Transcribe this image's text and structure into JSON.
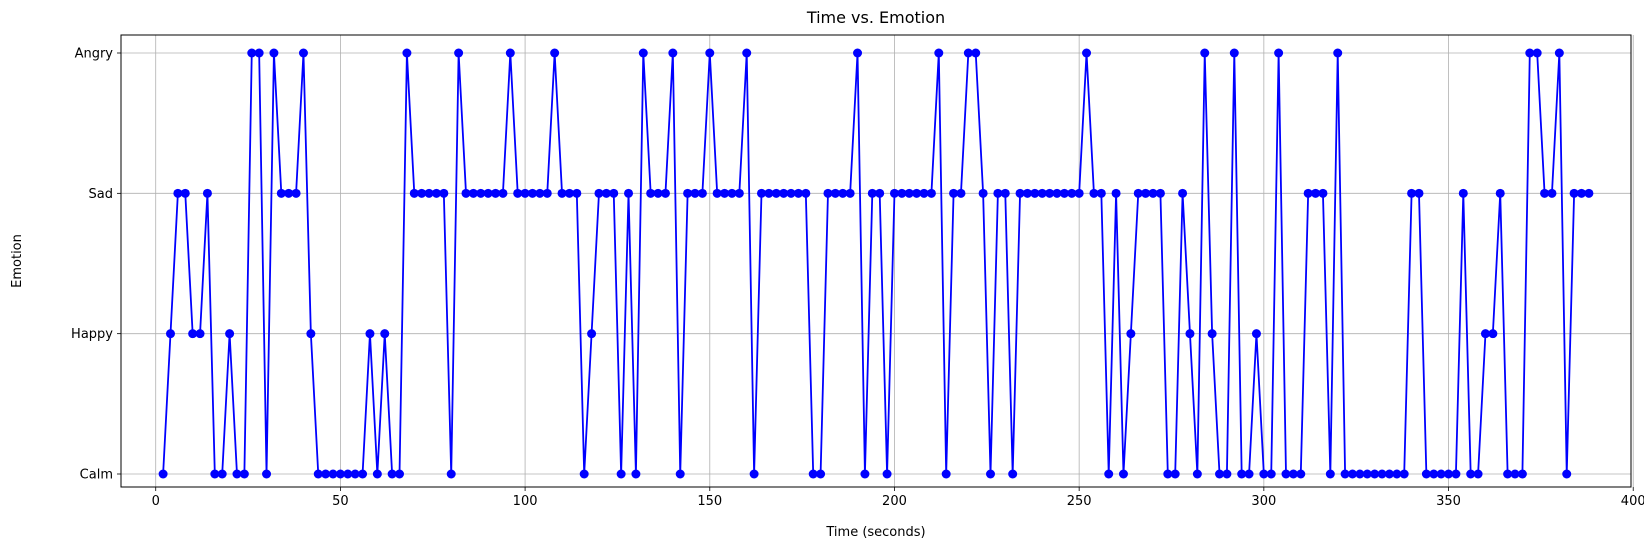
{
  "chart_data": {
    "type": "line",
    "title": "Time vs. Emotion",
    "xlabel": "Time (seconds)",
    "ylabel": "Emotion",
    "xlim": [
      -9.4,
      399.4
    ],
    "x_ticks": [
      0,
      50,
      100,
      150,
      200,
      250,
      300,
      350,
      400
    ],
    "y_categories": [
      "Calm",
      "Happy",
      "Sad",
      "Angry"
    ],
    "grid": true,
    "line_color": "#0000ff",
    "marker": "circle",
    "x_start": 2,
    "x_step": 2,
    "series": [
      {
        "values": [
          "Calm",
          "Happy",
          "Sad",
          "Sad",
          "Happy",
          "Happy",
          "Sad",
          "Calm",
          "Calm",
          "Happy",
          "Calm",
          "Calm",
          "Angry",
          "Angry",
          "Calm",
          "Angry",
          "Sad",
          "Sad",
          "Sad",
          "Angry",
          "Happy",
          "Calm",
          "Calm",
          "Calm",
          "Calm",
          "Calm",
          "Calm",
          "Calm",
          "Happy",
          "Calm",
          "Happy",
          "Calm",
          "Calm",
          "Angry",
          "Sad",
          "Sad",
          "Sad",
          "Sad",
          "Sad",
          "Calm",
          "Angry",
          "Sad",
          "Sad",
          "Sad",
          "Sad",
          "Sad",
          "Sad",
          "Angry",
          "Sad",
          "Sad",
          "Sad",
          "Sad",
          "Sad",
          "Angry",
          "Sad",
          "Sad",
          "Sad",
          "Calm",
          "Happy",
          "Sad",
          "Sad",
          "Sad",
          "Calm",
          "Sad",
          "Calm",
          "Angry",
          "Sad",
          "Sad",
          "Sad",
          "Angry",
          "Calm",
          "Sad",
          "Sad",
          "Sad",
          "Angry",
          "Sad",
          "Sad",
          "Sad",
          "Sad",
          "Angry",
          "Calm",
          "Sad",
          "Sad",
          "Sad",
          "Sad",
          "Sad",
          "Sad",
          "Sad",
          "Calm",
          "Calm",
          "Sad",
          "Sad",
          "Sad",
          "Sad",
          "Angry",
          "Calm",
          "Sad",
          "Sad",
          "Calm",
          "Sad",
          "Sad",
          "Sad",
          "Sad",
          "Sad",
          "Sad",
          "Angry",
          "Calm",
          "Sad",
          "Sad",
          "Angry",
          "Angry",
          "Sad",
          "Calm",
          "Sad",
          "Sad",
          "Calm",
          "Sad",
          "Sad",
          "Sad",
          "Sad",
          "Sad",
          "Sad",
          "Sad",
          "Sad",
          "Sad",
          "Angry",
          "Sad",
          "Sad",
          "Calm",
          "Sad",
          "Calm",
          "Happy",
          "Sad",
          "Sad",
          "Sad",
          "Sad",
          "Calm",
          "Calm",
          "Sad",
          "Happy",
          "Calm",
          "Angry",
          "Happy",
          "Calm",
          "Calm",
          "Angry",
          "Calm",
          "Calm",
          "Happy",
          "Calm",
          "Calm",
          "Angry",
          "Calm",
          "Calm",
          "Calm",
          "Sad",
          "Sad",
          "Sad",
          "Calm",
          "Angry",
          "Calm",
          "Calm",
          "Calm",
          "Calm",
          "Calm",
          "Calm",
          "Calm",
          "Calm",
          "Calm",
          "Sad",
          "Sad",
          "Calm",
          "Calm",
          "Calm",
          "Calm",
          "Calm",
          "Sad",
          "Calm",
          "Calm",
          "Happy",
          "Happy",
          "Sad",
          "Calm",
          "Calm",
          "Calm",
          "Angry",
          "Angry",
          "Sad",
          "Sad",
          "Angry",
          "Calm",
          "Sad",
          "Sad",
          "Sad"
        ]
      }
    ]
  }
}
